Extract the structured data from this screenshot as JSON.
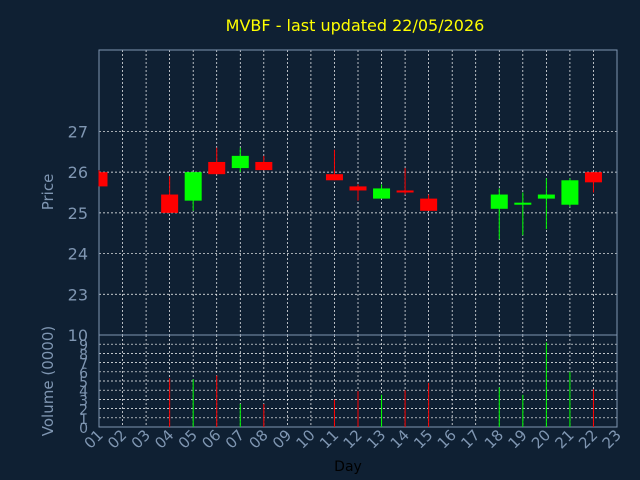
{
  "chart_data": {
    "type": "candlestick",
    "title": "MVBF - last updated 22/05/2026",
    "xlabel": "Day",
    "ylabel": "Price",
    "volume_label": "Volume (0000)",
    "x_ticks": [
      "01",
      "02",
      "03",
      "04",
      "05",
      "06",
      "07",
      "08",
      "09",
      "10",
      "11",
      "12",
      "13",
      "14",
      "15",
      "16",
      "17",
      "18",
      "19",
      "20",
      "21",
      "22",
      "23"
    ],
    "price_ticks": [
      "23",
      "24",
      "25",
      "26",
      "27"
    ],
    "volume_ticks": [
      "0",
      "1",
      "2",
      "3",
      "4",
      "5",
      "6",
      "7",
      "8",
      "9",
      "10"
    ],
    "price_range": [
      22,
      29
    ],
    "volume_range": [
      0,
      10
    ],
    "grid": true,
    "colors": {
      "background": "#0f2033",
      "up": "#00ff00",
      "down": "#ff0000",
      "grid": "#ffffff",
      "axis_text": "#7f96b2",
      "title": "#ffff00"
    },
    "candles": [
      {
        "day": 1,
        "open": 26.0,
        "high": 26.05,
        "low": 25.65,
        "close": 25.65,
        "volume": 0
      },
      {
        "day": 4,
        "open": 25.45,
        "high": 25.9,
        "low": 25.0,
        "close": 25.0,
        "volume": 5.3
      },
      {
        "day": 5,
        "open": 25.3,
        "high": 26.0,
        "low": 25.05,
        "close": 26.0,
        "volume": 5.2
      },
      {
        "day": 6,
        "open": 26.25,
        "high": 26.6,
        "low": 25.95,
        "close": 25.95,
        "volume": 5.6
      },
      {
        "day": 7,
        "open": 26.1,
        "high": 26.6,
        "low": 26.0,
        "close": 26.4,
        "volume": 2.5
      },
      {
        "day": 8,
        "open": 26.25,
        "high": 26.4,
        "low": 26.05,
        "close": 26.05,
        "volume": 2.5
      },
      {
        "day": 11,
        "open": 25.95,
        "high": 26.55,
        "low": 25.8,
        "close": 25.8,
        "volume": 3.0
      },
      {
        "day": 12,
        "open": 25.65,
        "high": 25.7,
        "low": 25.3,
        "close": 25.55,
        "volume": 3.9
      },
      {
        "day": 13,
        "open": 25.35,
        "high": 25.7,
        "low": 25.35,
        "close": 25.6,
        "volume": 3.5
      },
      {
        "day": 14,
        "open": 25.55,
        "high": 26.1,
        "low": 25.45,
        "close": 25.5,
        "volume": 4.0
      },
      {
        "day": 15,
        "open": 25.35,
        "high": 25.45,
        "low": 25.05,
        "close": 25.05,
        "volume": 4.8
      },
      {
        "day": 18,
        "open": 25.1,
        "high": 25.6,
        "low": 24.35,
        "close": 25.45,
        "volume": 4.3
      },
      {
        "day": 19,
        "open": 25.2,
        "high": 25.5,
        "low": 24.45,
        "close": 25.25,
        "volume": 3.5
      },
      {
        "day": 20,
        "open": 25.35,
        "high": 25.85,
        "low": 24.6,
        "close": 25.45,
        "volume": 9.2
      },
      {
        "day": 21,
        "open": 25.2,
        "high": 25.85,
        "low": 25.15,
        "close": 25.8,
        "volume": 6.0
      },
      {
        "day": 22,
        "open": 26.0,
        "high": 26.0,
        "low": 25.5,
        "close": 25.75,
        "volume": 4.1
      }
    ]
  }
}
